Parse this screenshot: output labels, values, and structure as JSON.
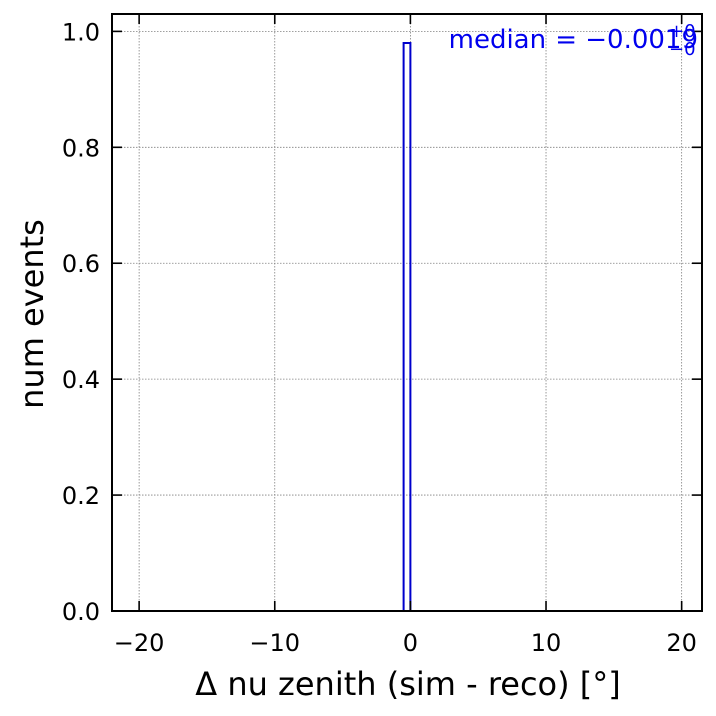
{
  "chart_data": {
    "type": "bar",
    "bins": [
      {
        "x0": -0.5,
        "x1": 0.0,
        "value": 0.98
      }
    ],
    "xlabel": "Δ nu zenith (sim - reco) [°]",
    "ylabel": "num events",
    "xlim": [
      -22,
      21.5
    ],
    "ylim": [
      0,
      1.03
    ],
    "xticks": [
      -20,
      -10,
      0,
      10,
      20
    ],
    "xtick_labels": [
      "−20",
      "−10",
      "0",
      "10",
      "20"
    ],
    "yticks": [
      0.0,
      0.2,
      0.4,
      0.6,
      0.8,
      1.0
    ],
    "ytick_labels": [
      "0.0",
      "0.2",
      "0.4",
      "0.6",
      "0.8",
      "1.0"
    ],
    "grid": true,
    "annotation": {
      "label": "median",
      "equals": "= −0.0019",
      "sup": "+0",
      "sub": "−0"
    },
    "colors": {
      "hist": "#0000cc",
      "annotation": "#0000ee",
      "grid": "#808080",
      "axes": "#000000"
    }
  }
}
